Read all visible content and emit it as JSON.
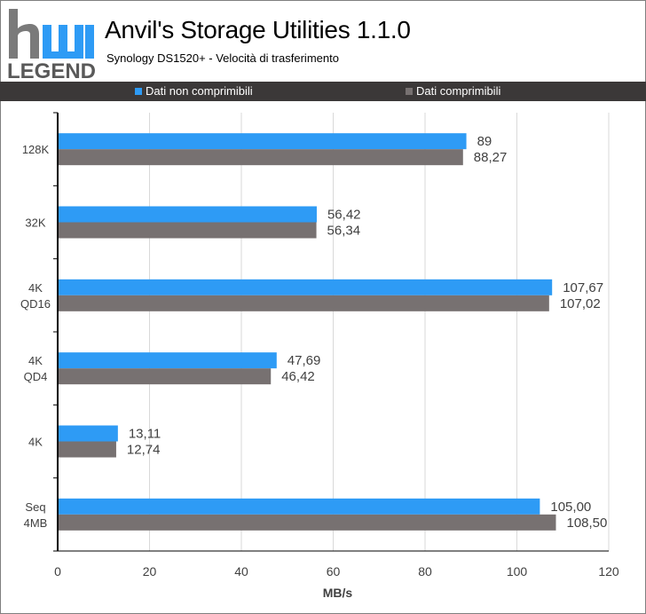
{
  "header": {
    "title": "Anvil's Storage Utilities 1.1.0",
    "subtitle": "Synology DS1520+ - Velocità di trasferimento",
    "logo_top": "hw",
    "logo_bottom": "LEGEND"
  },
  "legend": [
    {
      "label": "Dati non comprimibili",
      "color": "#2e9bf5"
    },
    {
      "label": "Dati comprimibili",
      "color": "#777171"
    }
  ],
  "chart_data": {
    "type": "bar",
    "orientation": "horizontal",
    "categories": [
      [
        "128K"
      ],
      [
        "32K"
      ],
      [
        "4K",
        "QD16"
      ],
      [
        "4K",
        "QD4"
      ],
      [
        "4K"
      ],
      [
        "Seq",
        "4MB"
      ]
    ],
    "series": [
      {
        "name": "Dati non comprimibili",
        "color": "#2e9bf5",
        "values": [
          89,
          56.42,
          107.67,
          47.69,
          13.11,
          105.0
        ],
        "labels": [
          "89",
          "56,42",
          "107,67",
          "47,69",
          "13,11",
          "105,00"
        ]
      },
      {
        "name": "Dati comprimibili",
        "color": "#777171",
        "values": [
          88.27,
          56.34,
          107.02,
          46.42,
          12.74,
          108.5
        ],
        "labels": [
          "88,27",
          "56,34",
          "107,02",
          "46,42",
          "12,74",
          "108,50"
        ]
      }
    ],
    "xlabel": "MB/s",
    "xlim": [
      0,
      120
    ],
    "xticks": [
      0,
      20,
      40,
      60,
      80,
      100,
      120
    ],
    "grid": true,
    "legend_position": "top"
  }
}
